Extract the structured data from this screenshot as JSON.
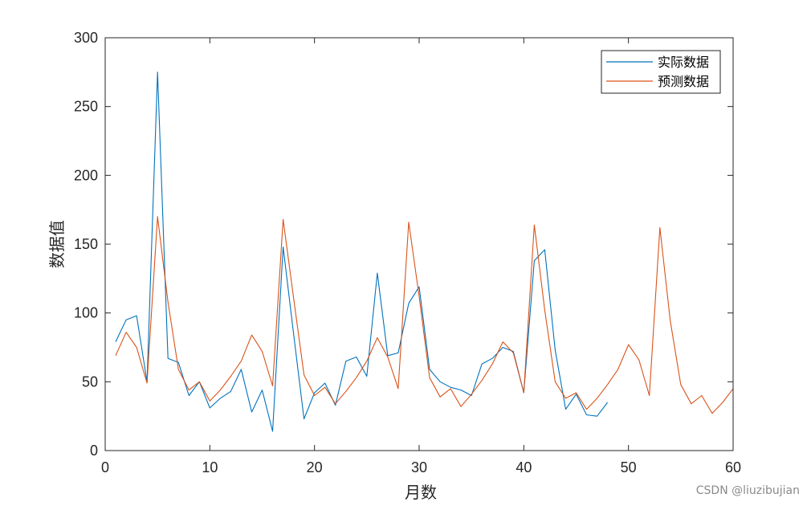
{
  "chart_data": {
    "type": "line",
    "title": "",
    "xlabel": "月数",
    "ylabel": "数据值",
    "xlim": [
      0,
      60
    ],
    "ylim": [
      0,
      300
    ],
    "xticks": [
      0,
      10,
      20,
      30,
      40,
      50,
      60
    ],
    "yticks": [
      0,
      50,
      100,
      150,
      200,
      250,
      300
    ],
    "grid": false,
    "legend_position": "top-right",
    "series": [
      {
        "name": "实际数据",
        "color": "#0072BD",
        "x": [
          1,
          2,
          3,
          4,
          5,
          6,
          7,
          8,
          9,
          10,
          11,
          12,
          13,
          14,
          15,
          16,
          17,
          18,
          19,
          20,
          21,
          22,
          23,
          24,
          25,
          26,
          27,
          28,
          29,
          30,
          31,
          32,
          33,
          34,
          35,
          36,
          37,
          38,
          39,
          40,
          41,
          42,
          43,
          44,
          45,
          46,
          47,
          48
        ],
        "y": [
          79,
          95,
          98,
          50,
          275,
          67,
          64,
          40,
          50,
          31,
          38,
          43,
          59,
          28,
          44,
          14,
          148,
          85,
          23,
          42,
          49,
          33,
          65,
          68,
          54,
          129,
          69,
          71,
          107,
          119,
          59,
          50,
          46,
          44,
          40,
          63,
          67,
          75,
          72,
          42,
          138,
          146,
          73,
          30,
          41,
          26,
          25,
          35
        ]
      },
      {
        "name": "预测数据",
        "color": "#D95319",
        "x": [
          1,
          2,
          3,
          4,
          5,
          6,
          7,
          8,
          9,
          10,
          11,
          12,
          13,
          14,
          15,
          16,
          17,
          18,
          19,
          20,
          21,
          22,
          23,
          24,
          25,
          26,
          27,
          28,
          29,
          30,
          31,
          32,
          33,
          34,
          35,
          36,
          37,
          38,
          39,
          40,
          41,
          42,
          43,
          44,
          45,
          46,
          47,
          48,
          49,
          50,
          51,
          52,
          53,
          54,
          55,
          56,
          57,
          58,
          59,
          60
        ],
        "y": [
          69,
          86,
          75,
          49,
          170,
          108,
          59,
          44,
          50,
          36,
          44,
          54,
          65,
          84,
          72,
          47,
          168,
          111,
          55,
          40,
          46,
          34,
          43,
          53,
          65,
          82,
          68,
          45,
          166,
          112,
          53,
          39,
          45,
          32,
          41,
          51,
          63,
          79,
          71,
          42,
          164,
          102,
          50,
          38,
          42,
          30,
          38,
          48,
          59,
          77,
          66,
          40,
          162,
          94,
          48,
          34,
          40,
          27,
          35,
          45
        ]
      }
    ]
  },
  "watermark": "CSDN @liuzibujian"
}
